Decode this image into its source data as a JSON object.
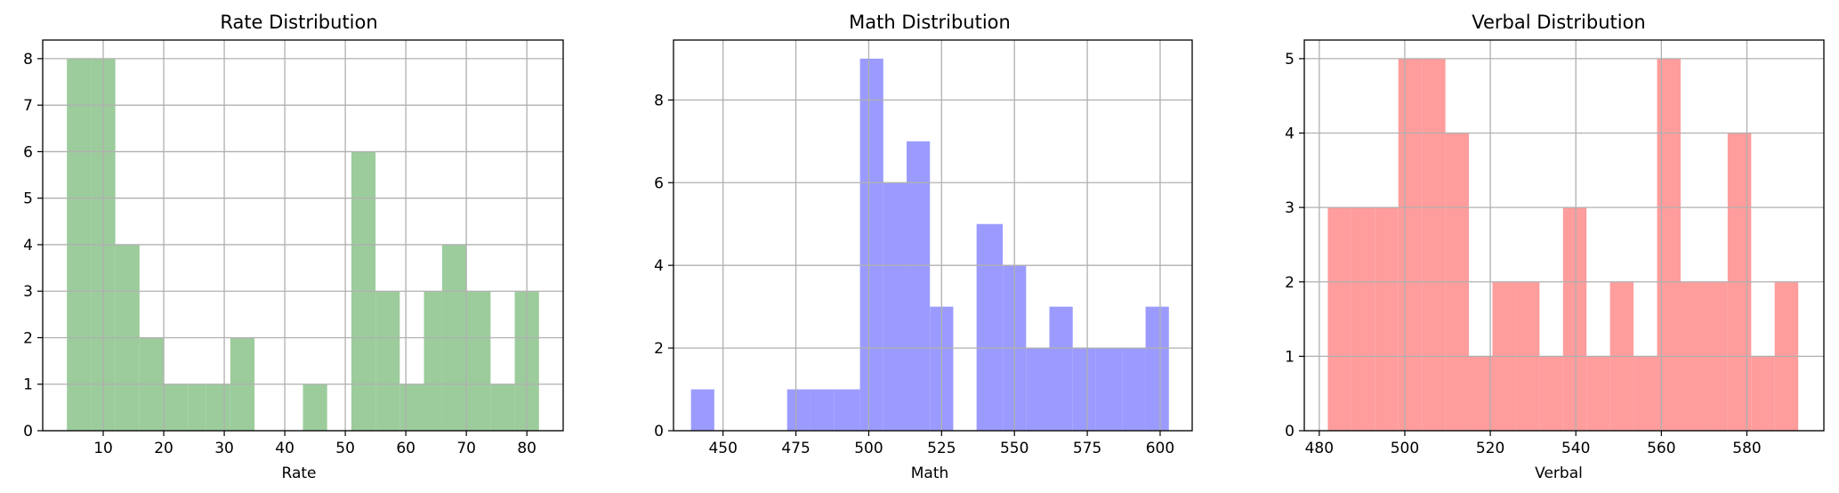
{
  "chart_data": [
    {
      "type": "bar",
      "title": "Rate Distribution",
      "xlabel": "Rate",
      "ylabel": "",
      "color": "#9ccc9c",
      "xlim": [
        0,
        86
      ],
      "ylim": [
        0,
        8.4
      ],
      "xticks": [
        10,
        20,
        30,
        40,
        50,
        60,
        70,
        80
      ],
      "yticks": [
        0,
        1,
        2,
        3,
        4,
        5,
        6,
        7,
        8
      ],
      "grid": true,
      "bins": [
        {
          "x0": 4,
          "x1": 8,
          "value": 8
        },
        {
          "x0": 8,
          "x1": 12,
          "value": 8
        },
        {
          "x0": 12,
          "x1": 16,
          "value": 4
        },
        {
          "x0": 16,
          "x1": 20,
          "value": 2
        },
        {
          "x0": 20,
          "x1": 24,
          "value": 1
        },
        {
          "x0": 24,
          "x1": 27,
          "value": 1
        },
        {
          "x0": 27,
          "x1": 31,
          "value": 1
        },
        {
          "x0": 31,
          "x1": 35,
          "value": 2
        },
        {
          "x0": 43,
          "x1": 47,
          "value": 1
        },
        {
          "x0": 51,
          "x1": 55,
          "value": 6
        },
        {
          "x0": 55,
          "x1": 59,
          "value": 3
        },
        {
          "x0": 59,
          "x1": 63,
          "value": 1
        },
        {
          "x0": 63,
          "x1": 66,
          "value": 3
        },
        {
          "x0": 66,
          "x1": 70,
          "value": 4
        },
        {
          "x0": 70,
          "x1": 74,
          "value": 3
        },
        {
          "x0": 74,
          "x1": 78,
          "value": 1
        },
        {
          "x0": 78,
          "x1": 82,
          "value": 3
        }
      ]
    },
    {
      "type": "bar",
      "title": "Math Distribution",
      "xlabel": "Math",
      "ylabel": "",
      "color": "#9b9bff",
      "xlim": [
        433,
        611
      ],
      "ylim": [
        0,
        9.45
      ],
      "xticks": [
        450,
        475,
        500,
        525,
        550,
        575,
        600
      ],
      "yticks": [
        0,
        2,
        4,
        6,
        8
      ],
      "grid": true,
      "bins": [
        {
          "x0": 439,
          "x1": 447,
          "value": 1
        },
        {
          "x0": 472,
          "x1": 480,
          "value": 1
        },
        {
          "x0": 480,
          "x1": 488,
          "value": 1
        },
        {
          "x0": 488,
          "x1": 497,
          "value": 1
        },
        {
          "x0": 497,
          "x1": 505,
          "value": 9
        },
        {
          "x0": 505,
          "x1": 513,
          "value": 6
        },
        {
          "x0": 513,
          "x1": 521,
          "value": 7
        },
        {
          "x0": 521,
          "x1": 529,
          "value": 3
        },
        {
          "x0": 537,
          "x1": 546,
          "value": 5
        },
        {
          "x0": 546,
          "x1": 554,
          "value": 4
        },
        {
          "x0": 554,
          "x1": 562,
          "value": 2
        },
        {
          "x0": 562,
          "x1": 570,
          "value": 3
        },
        {
          "x0": 570,
          "x1": 578,
          "value": 2
        },
        {
          "x0": 578,
          "x1": 587,
          "value": 2
        },
        {
          "x0": 587,
          "x1": 595,
          "value": 2
        },
        {
          "x0": 595,
          "x1": 603,
          "value": 3
        }
      ]
    },
    {
      "type": "bar",
      "title": "Verbal Distribution",
      "xlabel": "Verbal",
      "ylabel": "",
      "color": "#ff9c9c",
      "xlim": [
        476.5,
        598
      ],
      "ylim": [
        0,
        5.25
      ],
      "xticks": [
        480,
        500,
        520,
        540,
        560,
        580
      ],
      "yticks": [
        0,
        1,
        2,
        3,
        4,
        5
      ],
      "grid": true,
      "bins": [
        {
          "x0": 482,
          "x1": 487.5,
          "value": 3
        },
        {
          "x0": 487.5,
          "x1": 493,
          "value": 3
        },
        {
          "x0": 493,
          "x1": 498.5,
          "value": 3
        },
        {
          "x0": 498.5,
          "x1": 504,
          "value": 5
        },
        {
          "x0": 504,
          "x1": 509.5,
          "value": 5
        },
        {
          "x0": 509.5,
          "x1": 515,
          "value": 4
        },
        {
          "x0": 515,
          "x1": 520.5,
          "value": 1
        },
        {
          "x0": 520.5,
          "x1": 526,
          "value": 2
        },
        {
          "x0": 526,
          "x1": 531.5,
          "value": 2
        },
        {
          "x0": 531.5,
          "x1": 537,
          "value": 1
        },
        {
          "x0": 537,
          "x1": 542.5,
          "value": 3
        },
        {
          "x0": 542.5,
          "x1": 548,
          "value": 1
        },
        {
          "x0": 548,
          "x1": 553.5,
          "value": 2
        },
        {
          "x0": 553.5,
          "x1": 559,
          "value": 1
        },
        {
          "x0": 559,
          "x1": 564.5,
          "value": 5
        },
        {
          "x0": 564.5,
          "x1": 570,
          "value": 2
        },
        {
          "x0": 570,
          "x1": 575.5,
          "value": 2
        },
        {
          "x0": 575.5,
          "x1": 581,
          "value": 4
        },
        {
          "x0": 581,
          "x1": 586.5,
          "value": 1
        },
        {
          "x0": 586.5,
          "x1": 592,
          "value": 2
        }
      ]
    }
  ]
}
